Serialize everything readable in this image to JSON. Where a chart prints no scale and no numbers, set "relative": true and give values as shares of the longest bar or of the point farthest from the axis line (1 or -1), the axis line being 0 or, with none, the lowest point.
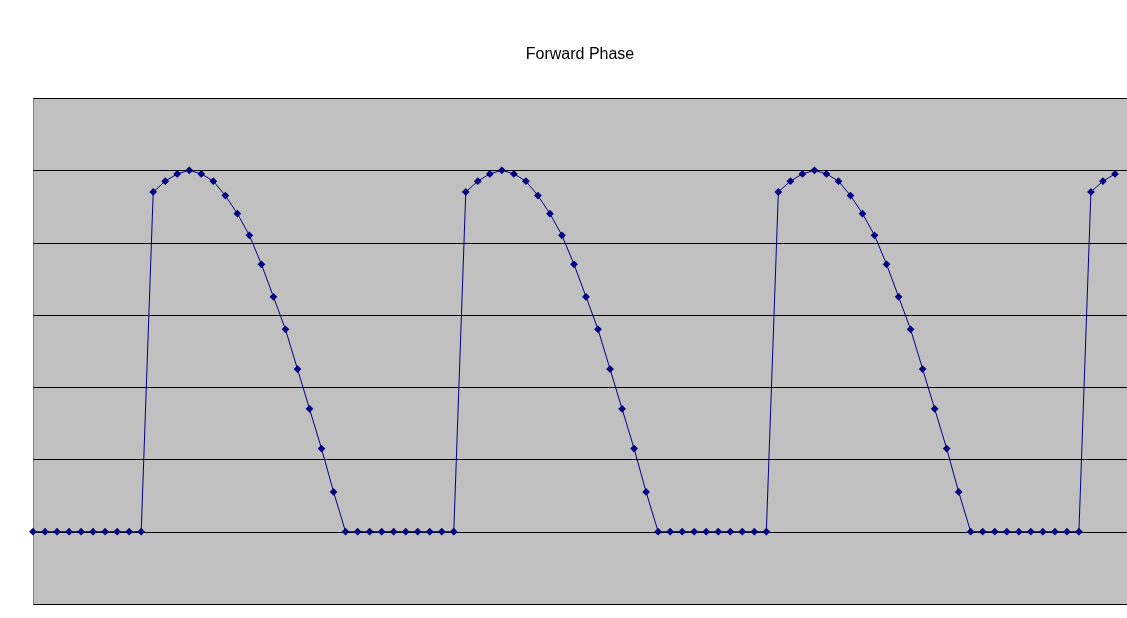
{
  "chart_data": {
    "type": "line",
    "title": "Forward Phase",
    "relative": true,
    "grid": "y",
    "marker": "diamond",
    "line_style": "solid",
    "categories": [
      null,
      null,
      null,
      null,
      null,
      null,
      null,
      null,
      null,
      null,
      null,
      null,
      null,
      null,
      null,
      null,
      null,
      null,
      null,
      null,
      null,
      null,
      null,
      null,
      null,
      null,
      null,
      null,
      null,
      null,
      null,
      null,
      null,
      null,
      null,
      null,
      null,
      null,
      null,
      null,
      null,
      null,
      null,
      null,
      null,
      null,
      null,
      null,
      null,
      null,
      null,
      null,
      null,
      null,
      null,
      null,
      null,
      null,
      null,
      null,
      null,
      null,
      null,
      null,
      null,
      null,
      null,
      null,
      null,
      null,
      null,
      null,
      null,
      null,
      null,
      null,
      null,
      null,
      null,
      null,
      null,
      null,
      null,
      null,
      null,
      null,
      null,
      null,
      null,
      null,
      null
    ],
    "series": [
      {
        "color": "#000080",
        "values": [
          0,
          0,
          0,
          0,
          0,
          0,
          0,
          0,
          0,
          0,
          0.94,
          0.97,
          0.99,
          1,
          0.99,
          0.97,
          0.93,
          0.88,
          0.82,
          0.74,
          0.65,
          0.56,
          0.45,
          0.34,
          0.23,
          0.11,
          0,
          0,
          0,
          0,
          0,
          0,
          0,
          0,
          0,
          0,
          0.94,
          0.97,
          0.99,
          1,
          0.99,
          0.97,
          0.93,
          0.88,
          0.82,
          0.74,
          0.65,
          0.56,
          0.45,
          0.34,
          0.23,
          0.11,
          0,
          0,
          0,
          0,
          0,
          0,
          0,
          0,
          0,
          0,
          0.94,
          0.97,
          0.99,
          1,
          0.99,
          0.97,
          0.93,
          0.88,
          0.82,
          0.74,
          0.65,
          0.56,
          0.45,
          0.34,
          0.23,
          0.11,
          0,
          0,
          0,
          0,
          0,
          0,
          0,
          0,
          0,
          0,
          0.94,
          0.97,
          0.99
        ]
      }
    ]
  }
}
